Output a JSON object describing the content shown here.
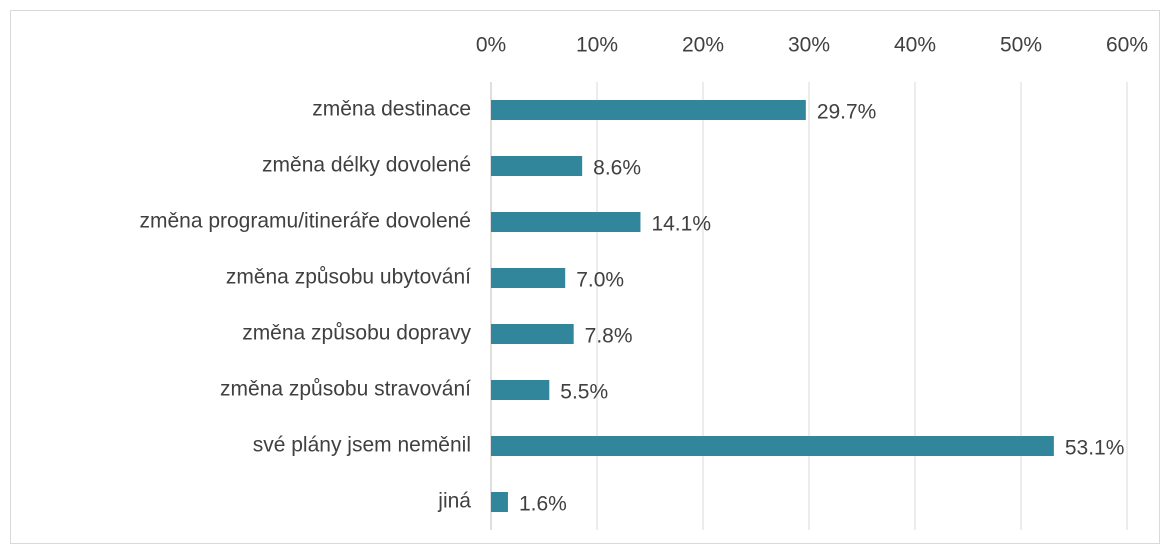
{
  "chart_data": {
    "type": "bar",
    "orientation": "horizontal",
    "categories": [
      "změna destinace",
      "změna délky dovolené",
      "změna programu/itineráře dovolené",
      "změna způsobu ubytování",
      "změna způsobu dopravy",
      "změna způsobu stravování",
      "své plány jsem neměnil",
      "jiná"
    ],
    "values": [
      29.7,
      8.6,
      14.1,
      7.0,
      7.8,
      5.5,
      53.1,
      1.6
    ],
    "value_labels": [
      "29.7%",
      "8.6%",
      "14.1%",
      "7.0%",
      "7.8%",
      "5.5%",
      "53.1%",
      "1.6%"
    ],
    "color": "#31869b",
    "xlim": [
      0,
      60
    ],
    "xticks": [
      {
        "value": 0,
        "label": "0%"
      },
      {
        "value": 10,
        "label": "10%"
      },
      {
        "value": 20,
        "label": "20%"
      },
      {
        "value": 30,
        "label": "30%"
      },
      {
        "value": 40,
        "label": "40%"
      },
      {
        "value": 50,
        "label": "50%"
      },
      {
        "value": 60,
        "label": "60%"
      }
    ],
    "grid": true
  }
}
